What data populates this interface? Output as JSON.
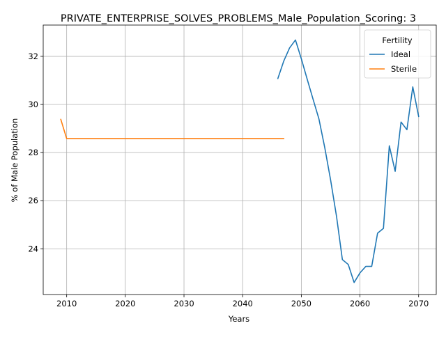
{
  "chart_data": {
    "type": "line",
    "title": "PRIVATE_ENTERPRISE_SOLVES_PROBLEMS_Male_Population_Scoring: 3",
    "xlabel": "Years",
    "ylabel": "% of Male Population",
    "xlim": [
      2006,
      2073
    ],
    "ylim": [
      22.1,
      33.3
    ],
    "xticks": [
      2010,
      2020,
      2030,
      2040,
      2050,
      2060,
      2070
    ],
    "yticks": [
      24,
      26,
      28,
      30,
      32
    ],
    "grid": true,
    "legend": {
      "title": "Fertility",
      "position": "top-right"
    },
    "series": [
      {
        "name": "Ideal",
        "color": "#1f77b4",
        "x": [
          2046,
          2047,
          2048,
          2049,
          2050,
          2051,
          2052,
          2053,
          2054,
          2055,
          2056,
          2057,
          2058,
          2059,
          2060,
          2061,
          2062,
          2063,
          2064,
          2065,
          2066,
          2067,
          2068,
          2069,
          2070
        ],
        "y": [
          31.08,
          31.8,
          32.35,
          32.68,
          31.9,
          31.05,
          30.22,
          29.4,
          28.2,
          26.85,
          25.35,
          23.55,
          23.35,
          22.6,
          23.0,
          23.27,
          23.27,
          24.65,
          24.85,
          28.28,
          27.22,
          29.27,
          28.95,
          30.73,
          29.5
        ]
      },
      {
        "name": "Sterile",
        "color": "#ff7f0e",
        "x": [
          2009,
          2010,
          2011,
          2012,
          2013,
          2014,
          2015,
          2016,
          2017,
          2018,
          2019,
          2020,
          2021,
          2022,
          2023,
          2024,
          2025,
          2026,
          2027,
          2028,
          2029,
          2030,
          2031,
          2032,
          2033,
          2034,
          2035,
          2036,
          2037,
          2038,
          2039,
          2040,
          2041,
          2042,
          2043,
          2044,
          2045,
          2046,
          2047
        ],
        "y": [
          29.38,
          28.58,
          28.58,
          28.58,
          28.58,
          28.58,
          28.58,
          28.58,
          28.58,
          28.58,
          28.58,
          28.58,
          28.58,
          28.58,
          28.58,
          28.58,
          28.58,
          28.58,
          28.58,
          28.58,
          28.58,
          28.58,
          28.58,
          28.58,
          28.58,
          28.58,
          28.58,
          28.58,
          28.58,
          28.58,
          28.58,
          28.58,
          28.58,
          28.58,
          28.58,
          28.58,
          28.58,
          28.58,
          28.58
        ]
      }
    ]
  }
}
